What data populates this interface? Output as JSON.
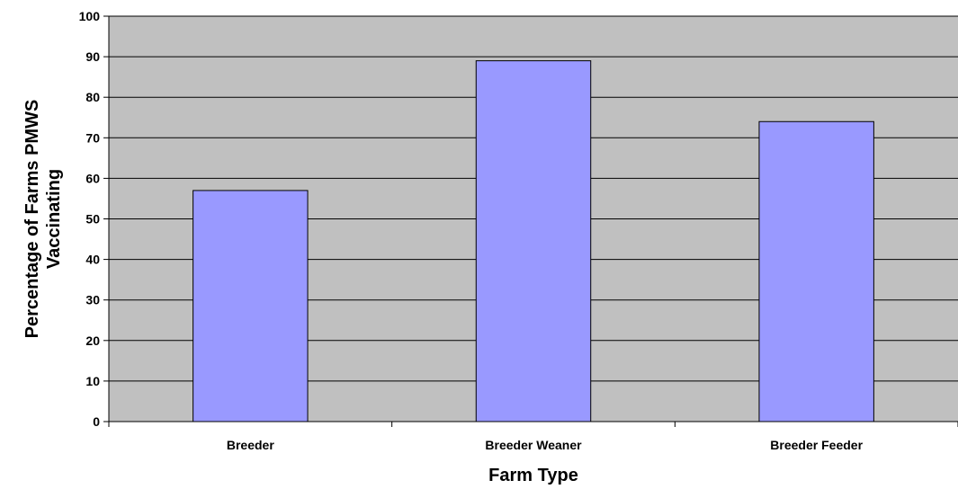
{
  "chart_data": {
    "type": "bar",
    "title": "",
    "xlabel": "Farm Type",
    "ylabel_lines": [
      "Percentage of Farms  PMWS",
      "Vaccinating"
    ],
    "categories": [
      "Breeder",
      "Breeder Weaner",
      "Breeder Feeder"
    ],
    "values": [
      57,
      89,
      74
    ],
    "ylim": [
      0,
      100
    ],
    "yticks": [
      0,
      10,
      20,
      30,
      40,
      50,
      60,
      70,
      80,
      90,
      100
    ],
    "grid": true,
    "legend": "none",
    "colors": {
      "plot_background": "#c0c0c0",
      "bar_fill": "#9999ff",
      "bar_stroke": "#000000",
      "gridline": "#000000"
    }
  }
}
